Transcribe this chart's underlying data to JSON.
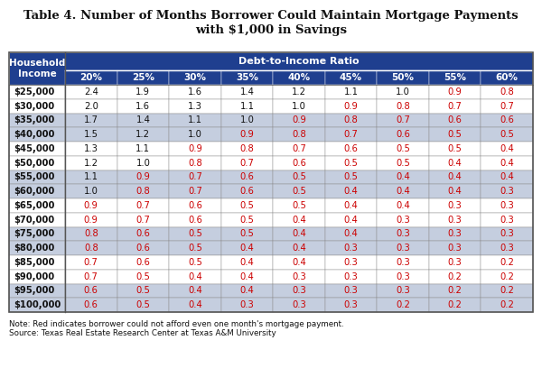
{
  "title_line1": "Table 4. Number of Months Borrower Could Maintain Mortgage Payments",
  "title_line2": "with $1,000 in Savings",
  "header_col": "Household\nIncome",
  "header_dti": "Debt-to-Income Ratio",
  "col_headers": [
    "20%",
    "25%",
    "30%",
    "35%",
    "40%",
    "45%",
    "50%",
    "55%",
    "60%"
  ],
  "row_labels": [
    "$25,000",
    "$30,000",
    "$35,000",
    "$40,000",
    "$45,000",
    "$50,000",
    "$55,000",
    "$60,000",
    "$65,000",
    "$70,000",
    "$75,000",
    "$80,000",
    "$85,000",
    "$90,000",
    "$95,000",
    "$100,000"
  ],
  "table_data": [
    [
      "2.4",
      "1.9",
      "1.6",
      "1.4",
      "1.2",
      "1.1",
      "1.0",
      "0.9",
      "0.8"
    ],
    [
      "2.0",
      "1.6",
      "1.3",
      "1.1",
      "1.0",
      "0.9",
      "0.8",
      "0.7",
      "0.7"
    ],
    [
      "1.7",
      "1.4",
      "1.1",
      "1.0",
      "0.9",
      "0.8",
      "0.7",
      "0.6",
      "0.6"
    ],
    [
      "1.5",
      "1.2",
      "1.0",
      "0.9",
      "0.8",
      "0.7",
      "0.6",
      "0.5",
      "0.5"
    ],
    [
      "1.3",
      "1.1",
      "0.9",
      "0.8",
      "0.7",
      "0.6",
      "0.5",
      "0.5",
      "0.4"
    ],
    [
      "1.2",
      "1.0",
      "0.8",
      "0.7",
      "0.6",
      "0.5",
      "0.5",
      "0.4",
      "0.4"
    ],
    [
      "1.1",
      "0.9",
      "0.7",
      "0.6",
      "0.5",
      "0.5",
      "0.4",
      "0.4",
      "0.4"
    ],
    [
      "1.0",
      "0.8",
      "0.7",
      "0.6",
      "0.5",
      "0.4",
      "0.4",
      "0.4",
      "0.3"
    ],
    [
      "0.9",
      "0.7",
      "0.6",
      "0.5",
      "0.5",
      "0.4",
      "0.4",
      "0.3",
      "0.3"
    ],
    [
      "0.9",
      "0.7",
      "0.6",
      "0.5",
      "0.4",
      "0.4",
      "0.3",
      "0.3",
      "0.3"
    ],
    [
      "0.8",
      "0.6",
      "0.5",
      "0.5",
      "0.4",
      "0.4",
      "0.3",
      "0.3",
      "0.3"
    ],
    [
      "0.8",
      "0.6",
      "0.5",
      "0.4",
      "0.4",
      "0.3",
      "0.3",
      "0.3",
      "0.3"
    ],
    [
      "0.7",
      "0.6",
      "0.5",
      "0.4",
      "0.4",
      "0.3",
      "0.3",
      "0.3",
      "0.2"
    ],
    [
      "0.7",
      "0.5",
      "0.4",
      "0.4",
      "0.3",
      "0.3",
      "0.3",
      "0.2",
      "0.2"
    ],
    [
      "0.6",
      "0.5",
      "0.4",
      "0.4",
      "0.3",
      "0.3",
      "0.3",
      "0.2",
      "0.2"
    ],
    [
      "0.6",
      "0.5",
      "0.4",
      "0.3",
      "0.3",
      "0.3",
      "0.2",
      "0.2",
      "0.2"
    ]
  ],
  "red_threshold": 1.0,
  "note": "Note: Red indicates borrower could not afford even one month's mortgage payment.",
  "source": "Source: Texas Real Estate Research Center at Texas A&M University",
  "header_bg": "#1F3F8F",
  "header_text": "#FFFFFF",
  "row_odd_bg": "#FFFFFF",
  "row_even_bg": "#C5CEDF",
  "red_color": "#CC0000",
  "black_color": "#111111",
  "border_color": "#888888",
  "title_fontsize": 9.5,
  "header_fontsize": 7.5,
  "data_fontsize": 7.2,
  "note_fontsize": 6.3
}
